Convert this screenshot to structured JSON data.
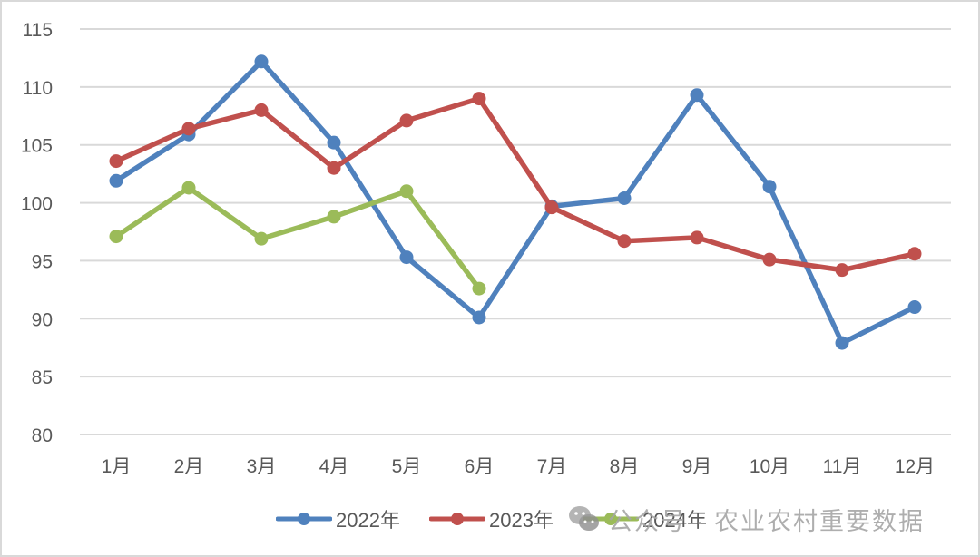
{
  "chart_data": {
    "type": "line",
    "title": "",
    "xlabel": "",
    "ylabel": "",
    "categories": [
      "1月",
      "2月",
      "3月",
      "4月",
      "5月",
      "6月",
      "7月",
      "8月",
      "9月",
      "10月",
      "11月",
      "12月"
    ],
    "ylim": [
      80,
      115
    ],
    "yticks": [
      80,
      85,
      90,
      95,
      100,
      105,
      110,
      115
    ],
    "grid": true,
    "legend_position": "bottom",
    "series": [
      {
        "name": "2022年",
        "color": "#4F81BD",
        "values": [
          101.9,
          105.9,
          112.2,
          105.2,
          95.3,
          90.1,
          99.7,
          100.4,
          109.3,
          101.4,
          87.9,
          91.0
        ]
      },
      {
        "name": "2023年",
        "color": "#C0504D",
        "values": [
          103.6,
          106.4,
          108.0,
          103.0,
          107.1,
          109.0,
          99.6,
          96.7,
          97.0,
          95.1,
          94.2,
          95.6
        ]
      },
      {
        "name": "2024年",
        "color": "#9BBB59",
        "values": [
          97.1,
          101.3,
          96.9,
          98.8,
          101.0,
          92.6
        ]
      }
    ]
  },
  "legend": {
    "items": [
      {
        "label": "2022年",
        "color": "#4F81BD"
      },
      {
        "label": "2023年",
        "color": "#C0504D"
      },
      {
        "label": "2024年",
        "color": "#9BBB59"
      }
    ]
  },
  "watermark": {
    "icon": "wechat-icon",
    "text": "公众号 · 农业农村重要数据"
  }
}
